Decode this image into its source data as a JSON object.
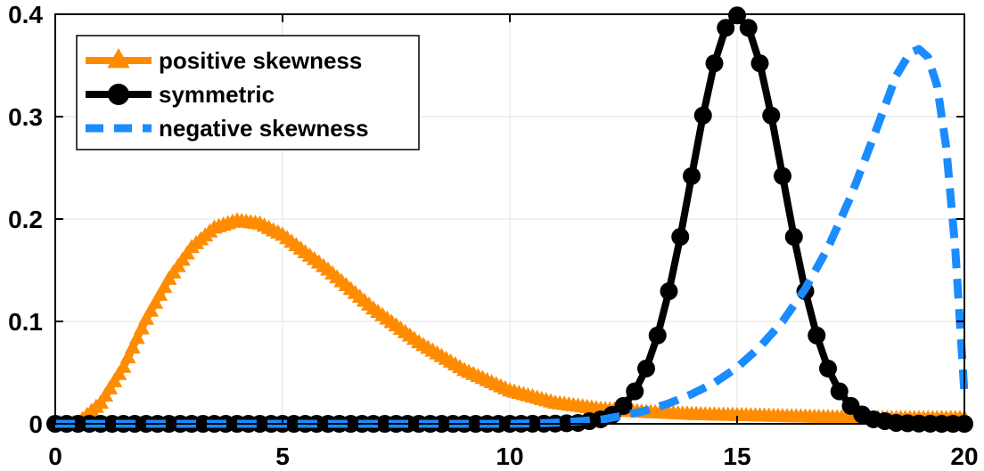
{
  "chart_data": {
    "type": "line",
    "title": "",
    "xlabel": "",
    "ylabel": "",
    "xlim": [
      0,
      20
    ],
    "ylim": [
      0,
      0.4
    ],
    "xticks": [
      0,
      5,
      10,
      15,
      20
    ],
    "xtick_labels": [
      "0",
      "5",
      "10",
      "15",
      "20"
    ],
    "yticks": [
      0,
      0.1,
      0.2,
      0.3,
      0.4
    ],
    "ytick_labels": [
      "0",
      "0.1",
      "0.2",
      "0.3",
      "0.4"
    ],
    "grid": true,
    "legend_position": "top-left",
    "series": [
      {
        "name": "positive skewness",
        "color": "#FF8C00",
        "line_style": "solid",
        "marker": "triangle",
        "x": [
          0,
          0.5,
          1,
          1.5,
          2,
          2.5,
          3,
          3.5,
          4,
          4.5,
          5,
          6,
          7,
          8,
          9,
          10,
          11,
          12,
          13,
          14,
          15,
          16,
          17,
          18,
          19,
          20
        ],
        "y": [
          0,
          0.0,
          0.02,
          0.055,
          0.102,
          0.141,
          0.172,
          0.191,
          0.198,
          0.195,
          0.184,
          0.15,
          0.112,
          0.079,
          0.052,
          0.032,
          0.02,
          0.014,
          0.011,
          0.009,
          0.008,
          0.007,
          0.006,
          0.005,
          0.005,
          0.005
        ]
      },
      {
        "name": "symmetric",
        "color": "#000000",
        "line_style": "solid",
        "marker": "circle",
        "x": [
          0,
          1,
          2,
          3,
          4,
          5,
          6,
          7,
          8,
          9,
          10,
          11,
          11.5,
          12,
          12.25,
          12.5,
          12.75,
          13,
          13.25,
          13.5,
          13.75,
          14,
          14.25,
          14.5,
          14.75,
          15,
          15.25,
          15.5,
          15.75,
          16,
          16.25,
          16.5,
          16.75,
          17,
          17.25,
          17.5,
          17.75,
          18,
          18.5,
          19,
          19.5,
          20
        ],
        "y": [
          0,
          0,
          0,
          0,
          0,
          0,
          0,
          0,
          0,
          0,
          0,
          0.0002,
          0.0009,
          0.0044,
          0.0087,
          0.0175,
          0.0317,
          0.054,
          0.0863,
          0.1295,
          0.1826,
          0.242,
          0.3011,
          0.3521,
          0.3867,
          0.3989,
          0.3867,
          0.3521,
          0.3011,
          0.242,
          0.1826,
          0.1295,
          0.0863,
          0.054,
          0.0317,
          0.0175,
          0.0091,
          0.0044,
          0.0009,
          0.0002,
          0,
          0
        ]
      },
      {
        "name": "negative skewness",
        "color": "#1A8CFF",
        "line_style": "dashed",
        "marker": "none",
        "x": [
          0,
          2,
          4,
          6,
          8,
          10,
          11,
          12,
          12.5,
          13,
          13.5,
          14,
          14.5,
          15,
          15.5,
          16,
          16.5,
          17,
          17.5,
          18,
          18.5,
          18.8,
          19,
          19.2,
          19.4,
          19.6,
          19.8,
          20
        ],
        "y": [
          0,
          0,
          0,
          0,
          0,
          0,
          0.001,
          0.004,
          0.008,
          0.013,
          0.02,
          0.029,
          0.04,
          0.055,
          0.075,
          0.1,
          0.132,
          0.172,
          0.222,
          0.28,
          0.34,
          0.362,
          0.366,
          0.358,
          0.33,
          0.27,
          0.17,
          0.03
        ]
      }
    ]
  }
}
